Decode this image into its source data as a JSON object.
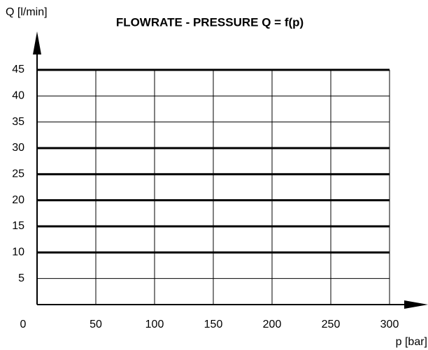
{
  "chart_data": {
    "type": "line",
    "title": "FLOWRATE - PRESSURE Q = f(p)",
    "y_label": "Q [l/min]",
    "x_label": "p [bar]",
    "x": [
      0,
      300
    ],
    "series": [
      {
        "color": "#000000",
        "values": [
          45,
          45
        ]
      },
      {
        "color": "#000000",
        "values": [
          30,
          30
        ]
      },
      {
        "color": "#000000",
        "values": [
          25,
          25
        ]
      },
      {
        "color": "#000000",
        "values": [
          20,
          20
        ]
      },
      {
        "color": "#000000",
        "values": [
          15,
          15
        ]
      },
      {
        "color": "#000000",
        "values": [
          10,
          10
        ]
      }
    ],
    "xlim": [
      0,
      300
    ],
    "xticks": [
      0,
      50,
      100,
      150,
      200,
      250,
      300
    ],
    "ylim": [
      0,
      45
    ],
    "yticks": [
      5,
      10,
      15,
      20,
      25,
      30,
      35,
      40,
      45
    ],
    "grid": true
  }
}
